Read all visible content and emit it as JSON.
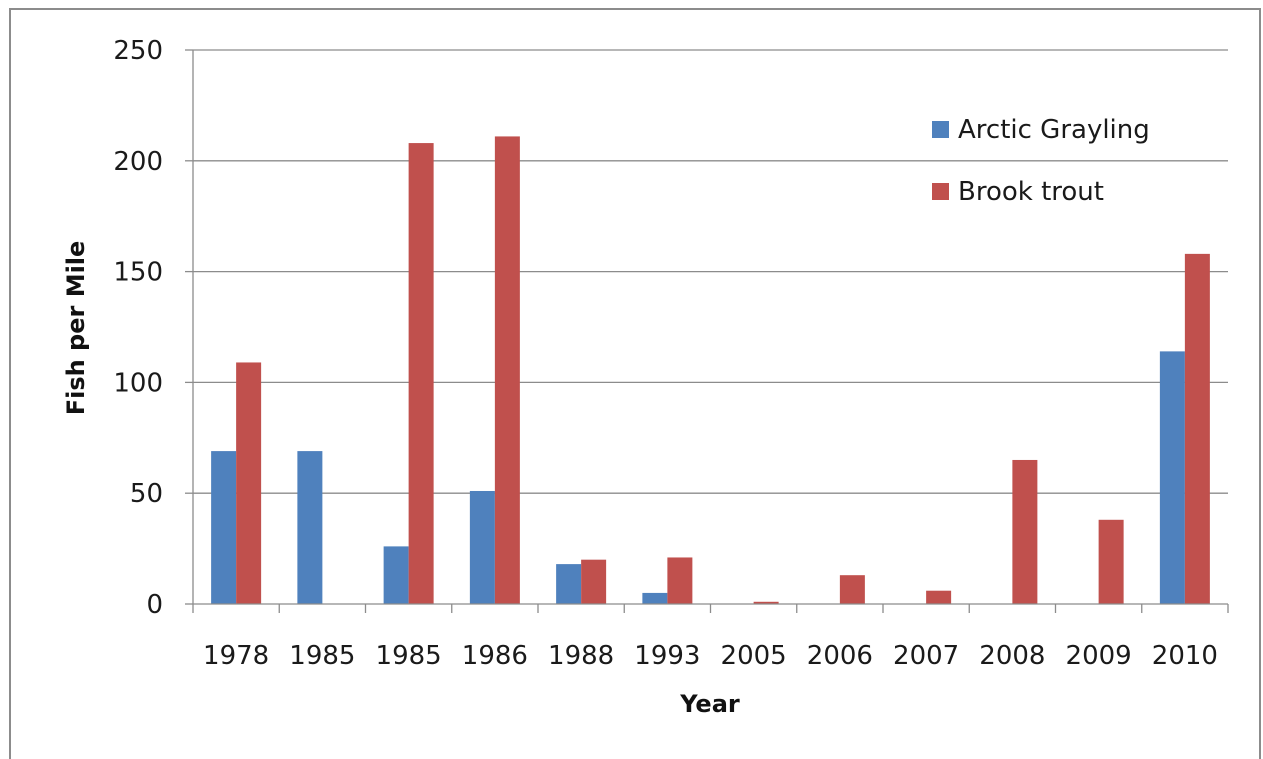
{
  "chart_data": {
    "type": "bar",
    "title": "",
    "xlabel": "Year",
    "ylabel": "Fish per Mile",
    "categories": [
      "1978",
      "1985",
      "1985",
      "1986",
      "1988",
      "1993",
      "2005",
      "2006",
      "2007",
      "2008",
      "2009",
      "2010"
    ],
    "series": [
      {
        "name": "Arctic Grayling",
        "color": "#4f81bd",
        "values": [
          69,
          69,
          26,
          51,
          18,
          5,
          0,
          0,
          0,
          0,
          0,
          114
        ]
      },
      {
        "name": "Brook trout",
        "color": "#c0504d",
        "values": [
          109,
          0,
          208,
          211,
          20,
          21,
          1,
          13,
          6,
          65,
          38,
          158
        ]
      }
    ],
    "ylim": [
      0,
      250
    ],
    "yticks": [
      0,
      50,
      100,
      150,
      200,
      250
    ],
    "grid": true,
    "legend_position": "top-right"
  }
}
